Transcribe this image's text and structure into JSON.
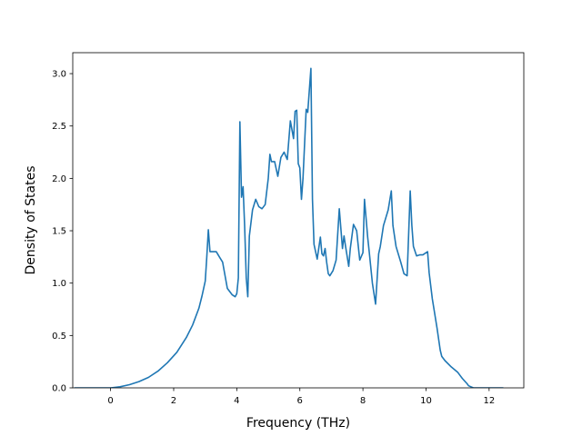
{
  "chart_data": {
    "type": "line",
    "title": "",
    "xlabel": "Frequency (THz)",
    "ylabel": "Density of States",
    "xlim": [
      -1.2,
      13.1
    ],
    "ylim": [
      0.0,
      3.2
    ],
    "xticks": [
      0,
      2,
      4,
      6,
      8,
      10,
      12
    ],
    "yticks": [
      0.0,
      0.5,
      1.0,
      1.5,
      2.0,
      2.5,
      3.0
    ],
    "xtick_labels": [
      "0",
      "2",
      "4",
      "6",
      "8",
      "10",
      "12"
    ],
    "ytick_labels": [
      "0.0",
      "0.5",
      "1.0",
      "1.5",
      "2.0",
      "2.5",
      "3.0"
    ],
    "grid": false,
    "series": [
      {
        "color": "#1f77b4",
        "x": [
          -1.15,
          -0.5,
          0.0,
          0.3,
          0.6,
          0.9,
          1.2,
          1.5,
          1.8,
          2.1,
          2.4,
          2.6,
          2.8,
          2.9,
          3.0,
          3.05,
          3.1,
          3.15,
          3.2,
          3.35,
          3.45,
          3.55,
          3.7,
          3.85,
          3.95,
          4.0,
          4.05,
          4.1,
          4.15,
          4.2,
          4.25,
          4.3,
          4.35,
          4.4,
          4.5,
          4.6,
          4.7,
          4.8,
          4.9,
          5.0,
          5.05,
          5.1,
          5.2,
          5.3,
          5.4,
          5.5,
          5.6,
          5.7,
          5.8,
          5.85,
          5.9,
          5.95,
          6.0,
          6.05,
          6.1,
          6.2,
          6.25,
          6.35,
          6.4,
          6.45,
          6.55,
          6.65,
          6.7,
          6.75,
          6.8,
          6.85,
          6.9,
          6.95,
          7.05,
          7.15,
          7.25,
          7.35,
          7.4,
          7.45,
          7.55,
          7.6,
          7.7,
          7.8,
          7.9,
          8.0,
          8.05,
          8.15,
          8.2,
          8.3,
          8.4,
          8.5,
          8.55,
          8.65,
          8.8,
          8.9,
          8.95,
          9.05,
          9.2,
          9.3,
          9.4,
          9.5,
          9.55,
          9.6,
          9.7,
          9.8,
          9.9,
          10.05,
          10.1,
          10.2,
          10.35,
          10.45,
          10.5,
          10.6,
          10.8,
          11.0,
          11.15,
          11.3,
          11.35,
          11.5,
          12.0,
          12.45
        ],
        "y": [
          0.0,
          0.0,
          0.0,
          0.01,
          0.03,
          0.06,
          0.1,
          0.16,
          0.24,
          0.34,
          0.48,
          0.6,
          0.76,
          0.88,
          1.02,
          1.25,
          1.51,
          1.3,
          1.3,
          1.3,
          1.25,
          1.2,
          0.95,
          0.89,
          0.87,
          0.9,
          1.05,
          2.54,
          1.82,
          1.92,
          1.55,
          1.05,
          0.87,
          1.45,
          1.7,
          1.8,
          1.73,
          1.71,
          1.75,
          2.0,
          2.23,
          2.16,
          2.16,
          2.02,
          2.2,
          2.25,
          2.18,
          2.55,
          2.38,
          2.64,
          2.65,
          2.14,
          2.1,
          1.8,
          2.0,
          2.66,
          2.63,
          3.05,
          1.8,
          1.37,
          1.23,
          1.44,
          1.28,
          1.26,
          1.33,
          1.2,
          1.09,
          1.07,
          1.12,
          1.22,
          1.71,
          1.33,
          1.45,
          1.35,
          1.16,
          1.33,
          1.56,
          1.5,
          1.22,
          1.29,
          1.8,
          1.44,
          1.3,
          1.0,
          0.8,
          1.28,
          1.35,
          1.55,
          1.7,
          1.88,
          1.55,
          1.35,
          1.2,
          1.09,
          1.07,
          1.88,
          1.55,
          1.35,
          1.26,
          1.27,
          1.27,
          1.3,
          1.1,
          0.85,
          0.57,
          0.36,
          0.3,
          0.26,
          0.2,
          0.15,
          0.09,
          0.04,
          0.02,
          0.0,
          0.0,
          0.0
        ]
      }
    ]
  }
}
